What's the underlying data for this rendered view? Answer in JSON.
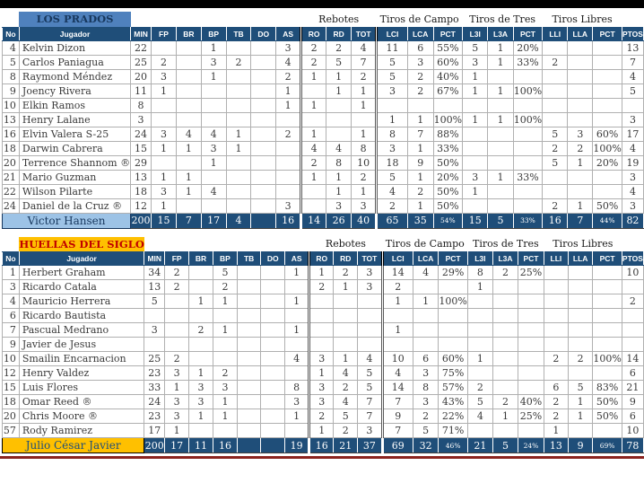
{
  "colors": {
    "header_navy": "#1F4E79",
    "banner_blue": "#4F81BD",
    "total_light_blue": "#9DC3E6",
    "banner_gold": "#FFC000",
    "banner_gold_text": "#C00000",
    "top_bar": "#000000",
    "bottom_bar": "#8B231E"
  },
  "table": {
    "group_headers": [
      {
        "label": "Rebotes",
        "span": 3
      },
      {
        "label": "Tiros de Campo",
        "span": 3
      },
      {
        "label": "Tiros de Tres",
        "span": 3
      },
      {
        "label": "Tiros Libres",
        "span": 3
      }
    ],
    "columns": [
      "No",
      "Jugador",
      "MIN",
      "FP",
      "BR",
      "BP",
      "TB",
      "DO",
      "AS",
      "RO",
      "RD",
      "TOT",
      "LCI",
      "LCA",
      "PCT",
      "L3I",
      "L3A",
      "PCT",
      "LLI",
      "LLA",
      "PCT",
      "PTOS"
    ]
  },
  "teams": [
    {
      "name": "LOS PRADOS",
      "theme": "blue",
      "players": [
        {
          "no": "4",
          "name": "Kelvin Dizon",
          "stats": [
            "22",
            "",
            "",
            "1",
            "",
            "",
            "3",
            "2",
            "2",
            "4",
            "11",
            "6",
            "55%",
            "5",
            "1",
            "20%",
            "",
            "",
            "",
            "13"
          ]
        },
        {
          "no": "5",
          "name": "Carlos Paniagua",
          "stats": [
            "25",
            "2",
            "",
            "3",
            "2",
            "",
            "4",
            "2",
            "5",
            "7",
            "5",
            "3",
            "60%",
            "3",
            "1",
            "33%",
            "2",
            "",
            "",
            "7"
          ]
        },
        {
          "no": "8",
          "name": "Raymond Méndez",
          "stats": [
            "20",
            "3",
            "",
            "1",
            "",
            "",
            "2",
            "1",
            "1",
            "2",
            "5",
            "2",
            "40%",
            "1",
            "",
            "",
            "",
            "",
            "",
            "4"
          ]
        },
        {
          "no": "9",
          "name": "Joency Rivera",
          "stats": [
            "11",
            "1",
            "",
            "",
            "",
            "",
            "1",
            "",
            "1",
            "1",
            "3",
            "2",
            "67%",
            "1",
            "1",
            "100%",
            "",
            "",
            "",
            "5"
          ]
        },
        {
          "no": "10",
          "name": "Elkin Ramos",
          "stats": [
            "8",
            "",
            "",
            "",
            "",
            "",
            "1",
            "1",
            "",
            "1",
            "",
            "",
            "",
            "",
            "",
            "",
            "",
            "",
            "",
            ""
          ]
        },
        {
          "no": "13",
          "name": "Henry Lalane",
          "stats": [
            "3",
            "",
            "",
            "",
            "",
            "",
            "",
            "",
            "",
            "",
            "1",
            "1",
            "100%",
            "1",
            "1",
            "100%",
            "",
            "",
            "",
            "3"
          ]
        },
        {
          "no": "16",
          "name": "Elvin Valera S-25",
          "stats": [
            "24",
            "3",
            "4",
            "4",
            "1",
            "",
            "2",
            "1",
            "",
            "1",
            "8",
            "7",
            "88%",
            "",
            "",
            "",
            "5",
            "3",
            "60%",
            "17"
          ]
        },
        {
          "no": "18",
          "name": "Darwin Cabrera",
          "stats": [
            "15",
            "1",
            "1",
            "3",
            "1",
            "",
            "",
            "4",
            "4",
            "8",
            "3",
            "1",
            "33%",
            "",
            "",
            "",
            "2",
            "2",
            "100%",
            "4"
          ]
        },
        {
          "no": "20",
          "name": "Terrence Shannom ®",
          "stats": [
            "29",
            "",
            "",
            "1",
            "",
            "",
            "",
            "2",
            "8",
            "10",
            "18",
            "9",
            "50%",
            "",
            "",
            "",
            "5",
            "1",
            "20%",
            "19"
          ]
        },
        {
          "no": "21",
          "name": "Mario Guzman",
          "stats": [
            "13",
            "1",
            "1",
            "",
            "",
            "",
            "",
            "1",
            "1",
            "2",
            "5",
            "1",
            "20%",
            "3",
            "1",
            "33%",
            "",
            "",
            "",
            "3"
          ]
        },
        {
          "no": "22",
          "name": "Wilson Pilarte",
          "stats": [
            "18",
            "3",
            "1",
            "4",
            "",
            "",
            "",
            "",
            "1",
            "1",
            "4",
            "2",
            "50%",
            "1",
            "",
            "",
            "",
            "",
            "",
            "4"
          ]
        },
        {
          "no": "24",
          "name": "Daniel de la Cruz ®",
          "stats": [
            "12",
            "1",
            "",
            "",
            "",
            "",
            "3",
            "",
            "3",
            "3",
            "2",
            "1",
            "50%",
            "",
            "",
            "",
            "2",
            "1",
            "50%",
            "3"
          ]
        }
      ],
      "total": {
        "label": "Victor Hansen",
        "stats": [
          "200",
          "15",
          "7",
          "17",
          "4",
          "",
          "16",
          "14",
          "26",
          "40",
          "65",
          "35",
          "54%",
          "15",
          "5",
          "33%",
          "16",
          "7",
          "44%",
          "82"
        ]
      }
    },
    {
      "name": "HUELLAS DEL SIGLO",
      "theme": "gold",
      "players": [
        {
          "no": "1",
          "name": "Herbert Graham",
          "stats": [
            "34",
            "2",
            "",
            "5",
            "",
            "",
            "1",
            "1",
            "2",
            "3",
            "14",
            "4",
            "29%",
            "8",
            "2",
            "25%",
            "",
            "",
            "",
            "10"
          ]
        },
        {
          "no": "3",
          "name": "Ricardo Catala",
          "stats": [
            "13",
            "2",
            "",
            "2",
            "",
            "",
            "",
            "2",
            "1",
            "3",
            "2",
            "",
            "",
            "1",
            "",
            "",
            "",
            "",
            "",
            ""
          ]
        },
        {
          "no": "4",
          "name": "Mauricio Herrera",
          "stats": [
            "5",
            "",
            "1",
            "1",
            "",
            "",
            "1",
            "",
            "",
            "",
            "1",
            "1",
            "100%",
            "",
            "",
            "",
            "",
            "",
            "",
            "2"
          ]
        },
        {
          "no": "6",
          "name": "Ricardo Bautista",
          "stats": [
            "",
            "",
            "",
            "",
            "",
            "",
            "",
            "",
            "",
            "",
            "",
            "",
            "",
            "",
            "",
            "",
            "",
            "",
            "",
            ""
          ]
        },
        {
          "no": "7",
          "name": "Pascual Medrano",
          "stats": [
            "3",
            "",
            "2",
            "1",
            "",
            "",
            "1",
            "",
            "",
            "",
            "1",
            "",
            "",
            "",
            "",
            "",
            "",
            "",
            "",
            ""
          ]
        },
        {
          "no": "9",
          "name": "Javier de Jesus",
          "stats": [
            "",
            "",
            "",
            "",
            "",
            "",
            "",
            "",
            "",
            "",
            "",
            "",
            "",
            "",
            "",
            "",
            "",
            "",
            "",
            ""
          ]
        },
        {
          "no": "10",
          "name": "Smailin Encarnacion",
          "stats": [
            "25",
            "2",
            "",
            "",
            "",
            "",
            "4",
            "3",
            "1",
            "4",
            "10",
            "6",
            "60%",
            "1",
            "",
            "",
            "2",
            "2",
            "100%",
            "14"
          ]
        },
        {
          "no": "12",
          "name": "Henry Valdez",
          "stats": [
            "23",
            "3",
            "1",
            "2",
            "",
            "",
            "",
            "1",
            "4",
            "5",
            "4",
            "3",
            "75%",
            "",
            "",
            "",
            "",
            "",
            "",
            "6"
          ]
        },
        {
          "no": "15",
          "name": "Luis Flores",
          "stats": [
            "33",
            "1",
            "3",
            "3",
            "",
            "",
            "8",
            "3",
            "2",
            "5",
            "14",
            "8",
            "57%",
            "2",
            "",
            "",
            "6",
            "5",
            "83%",
            "21"
          ]
        },
        {
          "no": "18",
          "name": "Omar Reed ®",
          "stats": [
            "24",
            "3",
            "3",
            "1",
            "",
            "",
            "3",
            "3",
            "4",
            "7",
            "7",
            "3",
            "43%",
            "5",
            "2",
            "40%",
            "2",
            "1",
            "50%",
            "9"
          ]
        },
        {
          "no": "20",
          "name": "Chris Moore ®",
          "stats": [
            "23",
            "3",
            "1",
            "1",
            "",
            "",
            "1",
            "2",
            "5",
            "7",
            "9",
            "2",
            "22%",
            "4",
            "1",
            "25%",
            "2",
            "1",
            "50%",
            "6"
          ]
        },
        {
          "no": "57",
          "name": "Rody Ramirez",
          "stats": [
            "17",
            "1",
            "",
            "",
            "",
            "",
            "",
            "1",
            "2",
            "3",
            "7",
            "5",
            "71%",
            "",
            "",
            "",
            "1",
            "",
            "",
            "10"
          ]
        }
      ],
      "total": {
        "label": "Julio César Javier",
        "stats": [
          "200",
          "17",
          "11",
          "16",
          "",
          "",
          "19",
          "16",
          "21",
          "37",
          "69",
          "32",
          "46%",
          "21",
          "5",
          "24%",
          "13",
          "9",
          "69%",
          "78"
        ]
      }
    }
  ]
}
